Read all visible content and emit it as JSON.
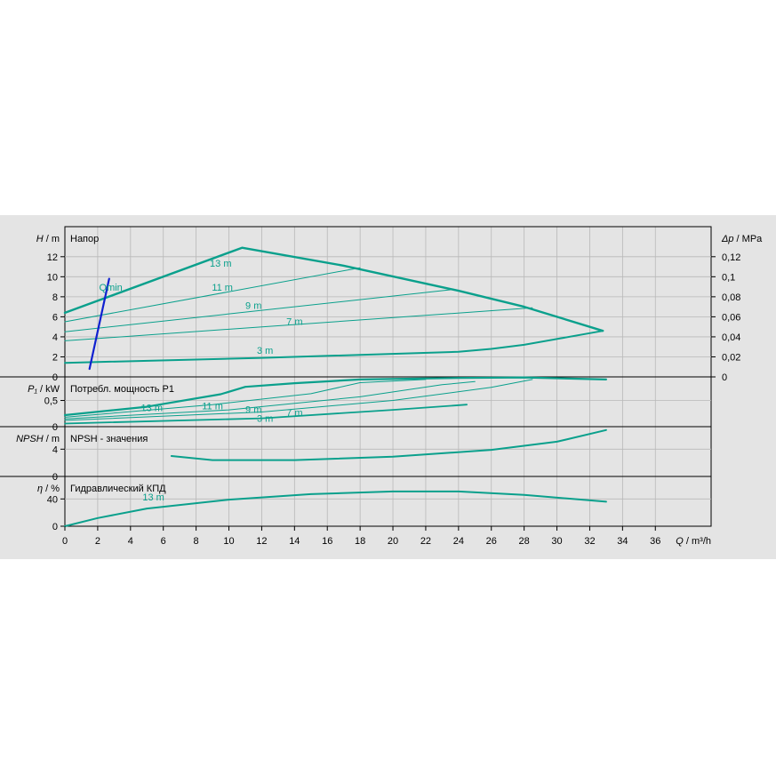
{
  "colors": {
    "curve": "#0aa08c",
    "qmin": "#1020d0",
    "panel": "#e4e4e4",
    "grid": "#b8b8b8"
  },
  "chart_data": [
    {
      "id": "head",
      "type": "line",
      "title": "Напор",
      "ylabel_var": "H",
      "ylabel_unit": "m",
      "ylim": [
        0,
        15
      ],
      "yticks": [
        0,
        2,
        4,
        6,
        8,
        10,
        12
      ],
      "ytick_labels": [
        "0",
        "2",
        "4",
        "6",
        "8",
        "10",
        "12"
      ],
      "right_axis": {
        "label_var": "Δp",
        "label_unit": "MPa",
        "ticks": [
          0,
          2,
          4,
          6,
          8,
          10,
          12
        ],
        "tick_labels": [
          "0",
          "0,02",
          "0,04",
          "0,06",
          "0,08",
          "0,1",
          "0,12"
        ]
      },
      "grid": true,
      "series": [
        {
          "name": "13 m",
          "label_at": [
            9.5,
            11
          ],
          "width": 2.4,
          "points": [
            [
              0,
              6.4
            ],
            [
              10.8,
              12.9
            ],
            [
              17,
              11.1
            ],
            [
              24,
              8.6
            ],
            [
              28,
              7
            ],
            [
              32.8,
              4.6
            ]
          ]
        },
        {
          "name": "11 m",
          "label_at": [
            9.6,
            8.6
          ],
          "width": 1,
          "points": [
            [
              0,
              5.5
            ],
            [
              18,
              10.9
            ]
          ]
        },
        {
          "name": "9 m",
          "label_at": [
            11.5,
            6.8
          ],
          "width": 1,
          "points": [
            [
              0,
              4.5
            ],
            [
              23.5,
              8.7
            ]
          ]
        },
        {
          "name": "7 m",
          "label_at": [
            14,
            5.2
          ],
          "width": 1,
          "points": [
            [
              0,
              3.6
            ],
            [
              28.5,
              6.9
            ]
          ]
        },
        {
          "name": "3 m",
          "label_at": [
            12.2,
            2.3
          ],
          "width": 2,
          "points": [
            [
              0,
              1.4
            ],
            [
              12,
              1.9
            ],
            [
              24,
              2.5
            ],
            [
              26,
              2.8
            ],
            [
              28,
              3.2
            ],
            [
              32.8,
              4.6
            ]
          ]
        },
        {
          "name": "Qmin",
          "label_at": [
            2.8,
            8.6
          ],
          "width": 2.2,
          "color": "qmin",
          "points": [
            [
              1.5,
              0.8
            ],
            [
              2.7,
              9.8
            ]
          ]
        }
      ]
    },
    {
      "id": "power",
      "type": "line",
      "title": "Потребл. мощность P1",
      "ylabel_var": "P₁",
      "ylabel_unit": "kW",
      "ylim": [
        0,
        0.95
      ],
      "yticks": [
        0,
        0.5
      ],
      "ytick_labels": [
        "0",
        "0,5"
      ],
      "grid": true,
      "series": [
        {
          "name": "13 m",
          "label_at": [
            5.3,
            0.3
          ],
          "width": 2.2,
          "points": [
            [
              0,
              0.22
            ],
            [
              5,
              0.38
            ],
            [
              9.5,
              0.62
            ],
            [
              11,
              0.76
            ],
            [
              14,
              0.83
            ],
            [
              18,
              0.9
            ],
            [
              24,
              0.93
            ],
            [
              28,
              0.94
            ],
            [
              33,
              0.9
            ]
          ]
        },
        {
          "name": "11 m",
          "label_at": [
            9,
            0.33
          ],
          "width": 1,
          "points": [
            [
              0,
              0.18
            ],
            [
              9,
              0.42
            ],
            [
              15,
              0.63
            ],
            [
              18,
              0.84
            ],
            [
              22,
              0.9
            ]
          ]
        },
        {
          "name": "9 m",
          "label_at": [
            11.5,
            0.26
          ],
          "width": 1,
          "points": [
            [
              0,
              0.15
            ],
            [
              10,
              0.32
            ],
            [
              18,
              0.57
            ],
            [
              23,
              0.8
            ],
            [
              25,
              0.86
            ]
          ]
        },
        {
          "name": "7 m",
          "label_at": [
            14,
            0.2
          ],
          "width": 1,
          "points": [
            [
              0,
              0.12
            ],
            [
              12,
              0.28
            ],
            [
              20,
              0.5
            ],
            [
              26,
              0.75
            ],
            [
              28.5,
              0.9
            ]
          ]
        },
        {
          "name": "3 m",
          "label_at": [
            12.2,
            0.09
          ],
          "width": 1.8,
          "points": [
            [
              0,
              0.06
            ],
            [
              12,
              0.16
            ],
            [
              20,
              0.32
            ],
            [
              24.5,
              0.42
            ]
          ]
        }
      ]
    },
    {
      "id": "npsh",
      "type": "line",
      "title": "NPSH - значения",
      "ylabel_var": "NPSH",
      "ylabel_unit": "m",
      "ylim": [
        0,
        7.3
      ],
      "yticks": [
        0,
        4
      ],
      "ytick_labels": [
        "0",
        "4"
      ],
      "grid": true,
      "series": [
        {
          "name": "",
          "width": 2,
          "points": [
            [
              6.5,
              3
            ],
            [
              9,
              2.4
            ],
            [
              14,
              2.4
            ],
            [
              20,
              2.9
            ],
            [
              26,
              3.9
            ],
            [
              30,
              5.1
            ],
            [
              33,
              6.8
            ]
          ]
        }
      ]
    },
    {
      "id": "efficiency",
      "type": "line",
      "title": "Гидравлический КПД",
      "ylabel_var": "η",
      "ylabel_unit": "%",
      "ylim": [
        0,
        73
      ],
      "yticks": [
        0,
        40
      ],
      "ytick_labels": [
        "0",
        "40"
      ],
      "grid": true,
      "series": [
        {
          "name": "13 m",
          "label_at": [
            5.4,
            38
          ],
          "width": 2,
          "points": [
            [
              0,
              0
            ],
            [
              2,
              12
            ],
            [
              5,
              26
            ],
            [
              10,
              39
            ],
            [
              15,
              47
            ],
            [
              20,
              51
            ],
            [
              24,
              51
            ],
            [
              28,
              46
            ],
            [
              33,
              36
            ]
          ]
        }
      ]
    }
  ],
  "x_axis": {
    "label_var": "Q",
    "label_unit": "m³/h",
    "xlim": [
      0,
      39.4
    ],
    "ticks": [
      0,
      2,
      4,
      6,
      8,
      10,
      12,
      14,
      16,
      18,
      20,
      22,
      24,
      26,
      28,
      30,
      32,
      34,
      36
    ],
    "tick_labels": [
      "0",
      "2",
      "4",
      "6",
      "8",
      "10",
      "12",
      "14",
      "16",
      "18",
      "20",
      "22",
      "24",
      "26",
      "28",
      "30",
      "32",
      "34",
      "36"
    ]
  }
}
